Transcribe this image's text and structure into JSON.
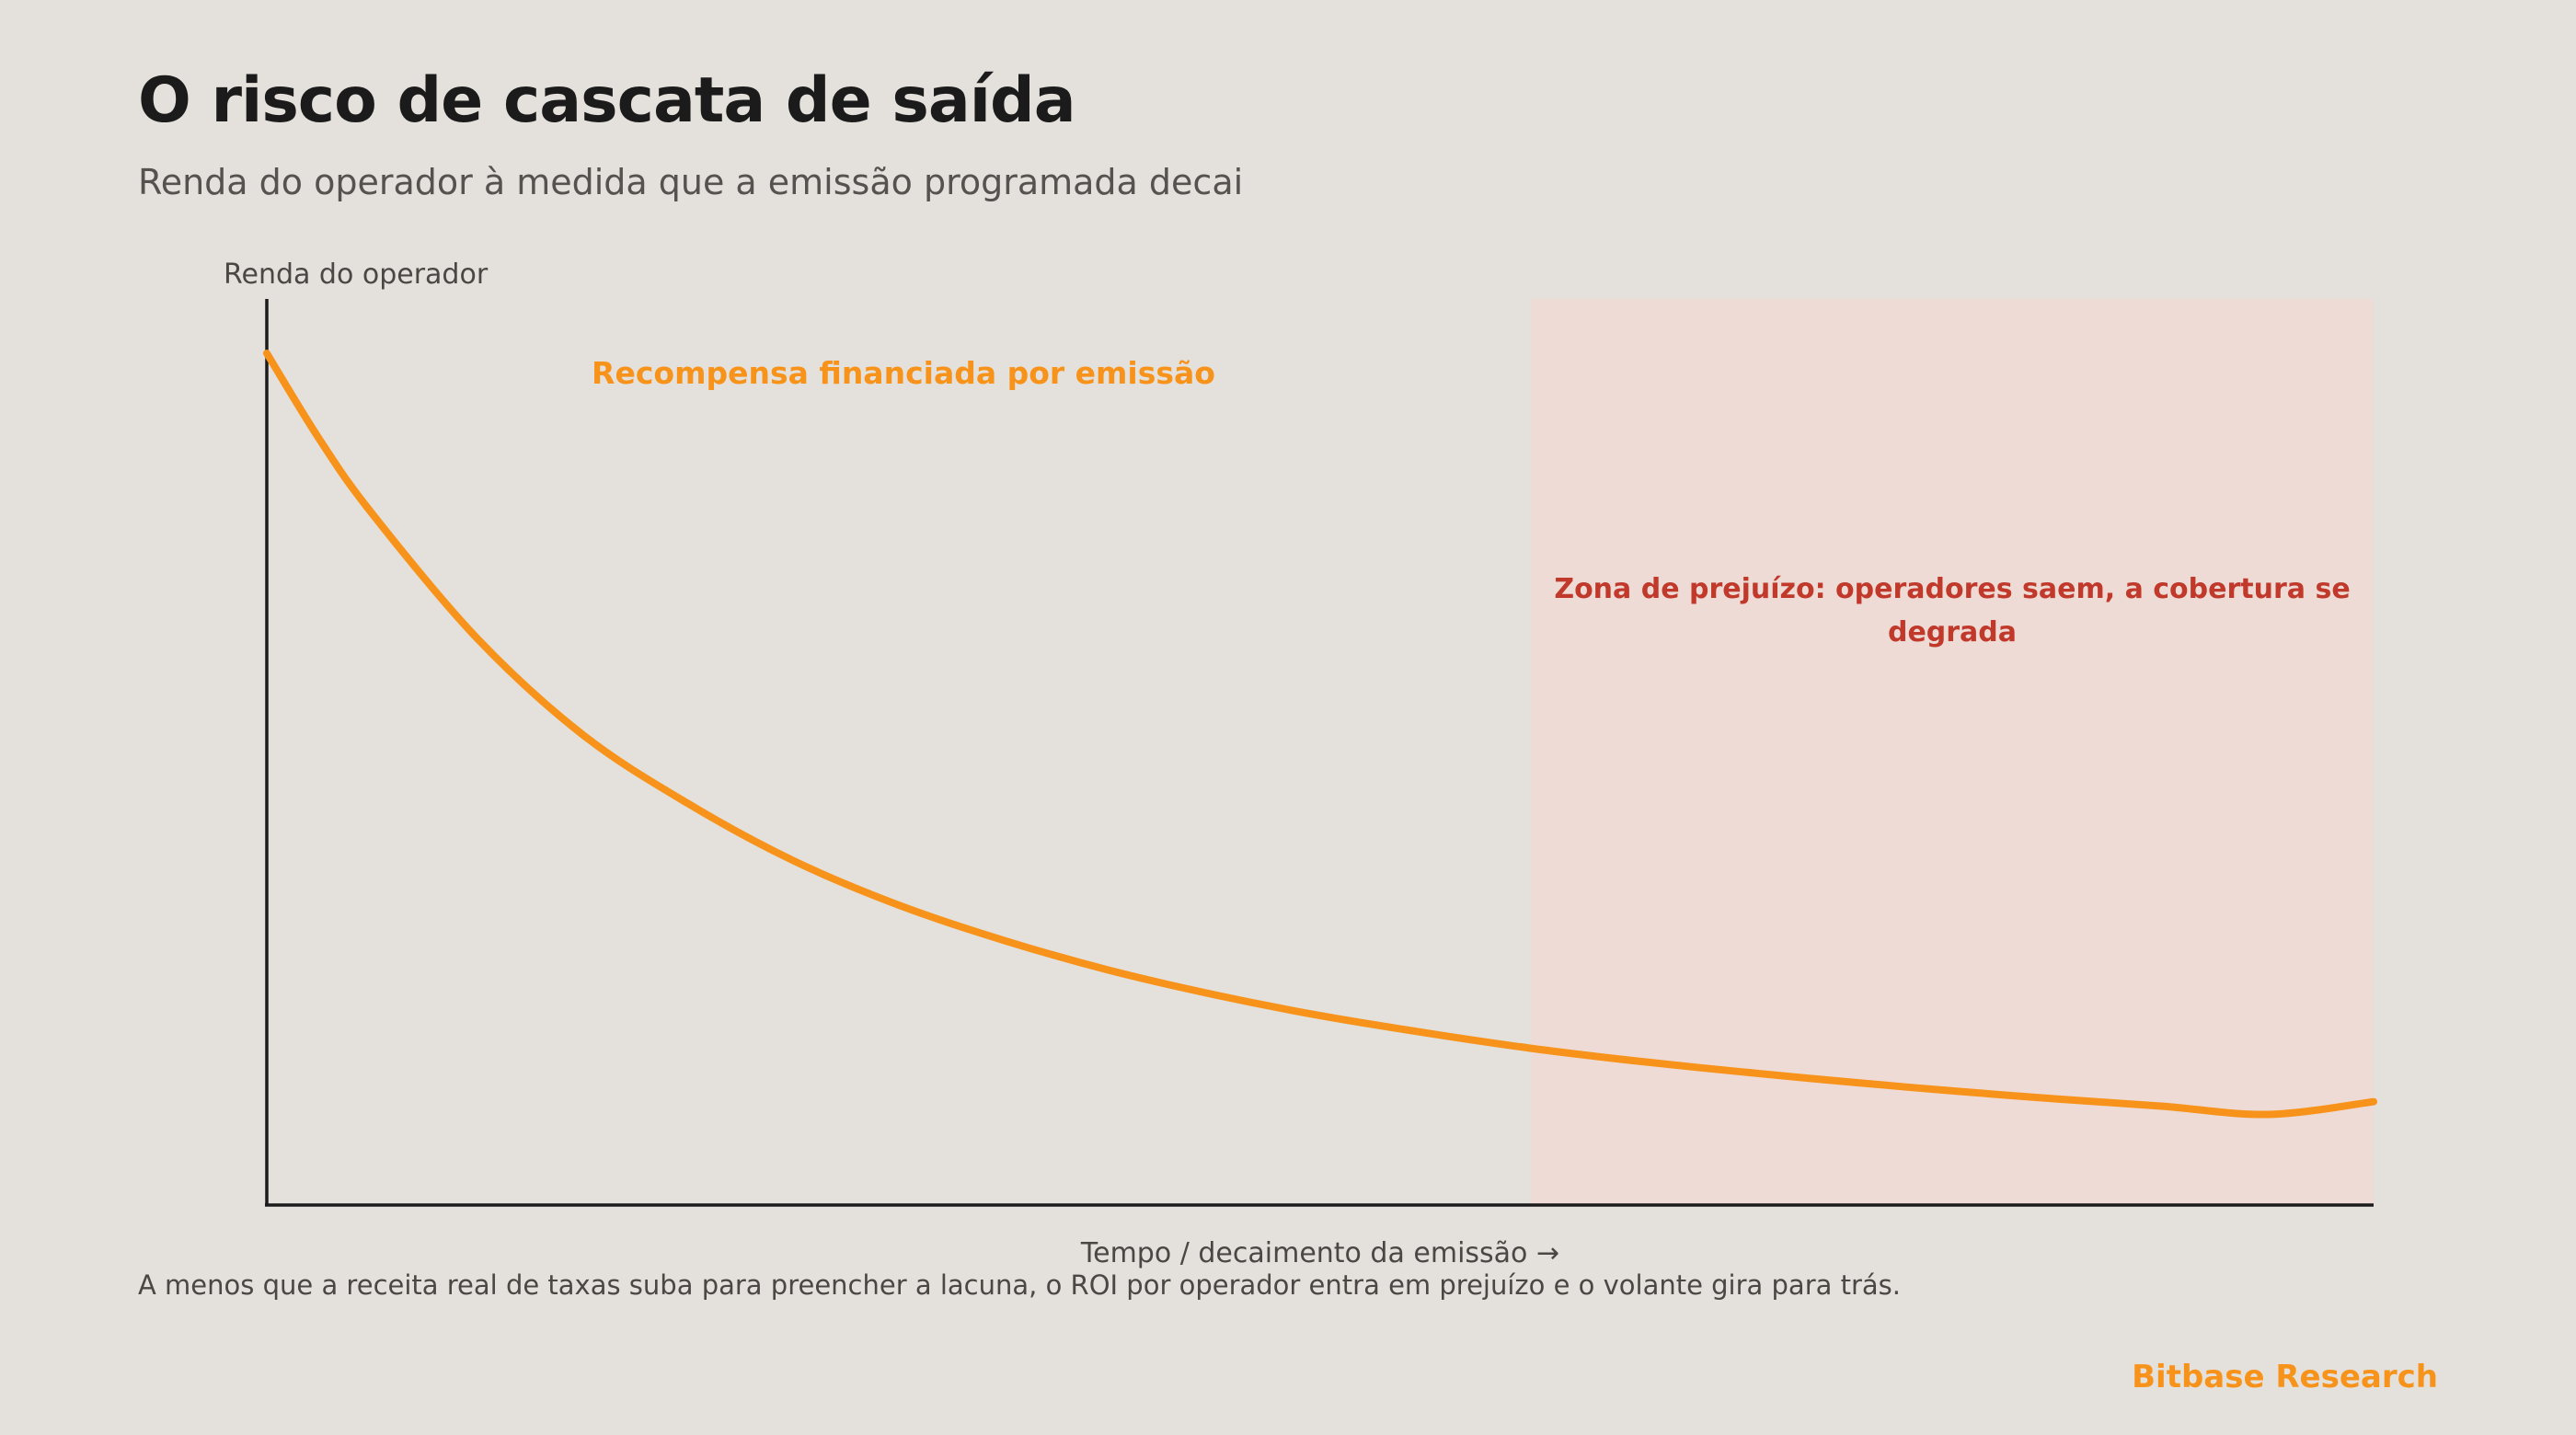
{
  "title": "O risco de cascata de saída",
  "subtitle": "Renda do operador à medida que a emissão programada decai",
  "footnote": "A menos que a receita real de taxas suba para preencher a lacuna, o ROI por operador entra em prejuízo e o volante gira para trás.",
  "brand": "Bitbase Research",
  "colors": {
    "background": "#e4e0db",
    "curve": "#f7931a",
    "loss_zone": "#efdbd5",
    "loss_text": "#c0392b",
    "axis": "#1b1b1b"
  },
  "chart_data": {
    "type": "line",
    "title": "O risco de cascata de saída",
    "subtitle": "Renda do operador à medida que a emissão programada decai",
    "xlabel": "Tempo / decaimento da emissão →",
    "ylabel": "Renda do operador",
    "grid": false,
    "legend": "none",
    "xlim": [
      0,
      1
    ],
    "ylim": [
      0,
      1
    ],
    "series": [
      {
        "x": [
          0,
          0.025,
          0.05,
          0.1,
          0.15,
          0.2,
          0.25,
          0.3,
          0.35,
          0.4,
          0.45,
          0.5,
          0.55,
          0.6,
          0.65,
          0.7,
          0.75,
          0.8,
          0.85,
          0.9,
          0.95,
          1.0
        ],
        "values": [
          0.94,
          0.845,
          0.763,
          0.625,
          0.519,
          0.443,
          0.38,
          0.331,
          0.292,
          0.259,
          0.232,
          0.209,
          0.19,
          0.173,
          0.159,
          0.147,
          0.136,
          0.126,
          0.117,
          0.109,
          0.1,
          0.114
        ]
      }
    ],
    "annotations": [
      {
        "text": "Recompensa financiada por emissão",
        "kind": "series-label"
      },
      {
        "text": "Zona de prejuízo: operadores saem, a cobertura se degrada",
        "kind": "shaded-region",
        "x_range": [
          0.6,
          1.0
        ]
      }
    ]
  }
}
